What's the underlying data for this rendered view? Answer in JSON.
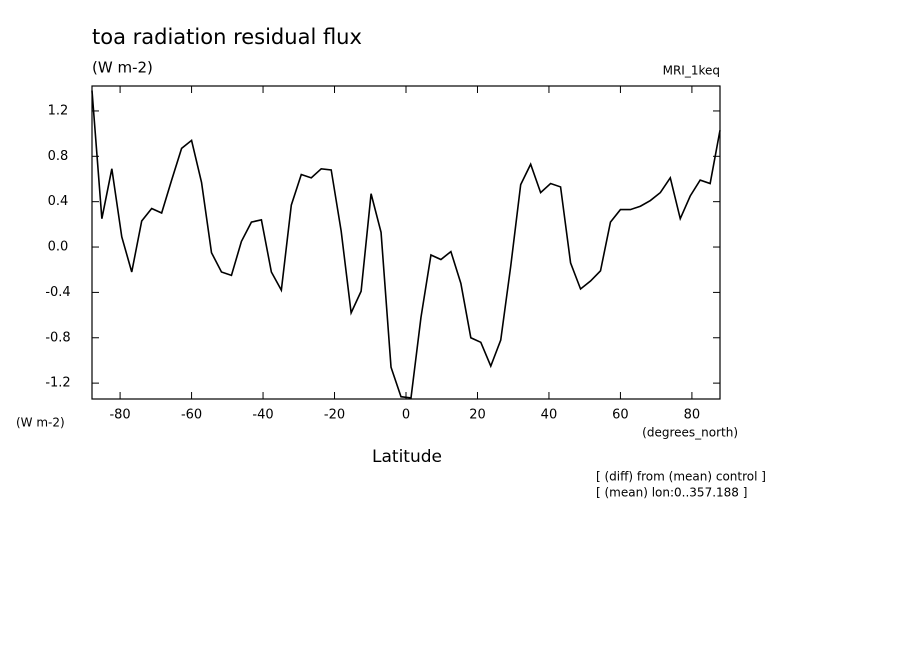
{
  "chart_data": {
    "type": "line",
    "title": "toa radiation residual flux",
    "units": "(W m-2)",
    "model": "MRI_1keq",
    "y_label": "(W m-2)",
    "x_units": "(degrees_north)",
    "x_label": "Latitude",
    "annotations": [
      "[ (diff) from (mean) control ]",
      "[ (mean) lon:0..357.188 ]"
    ],
    "color": "#000000",
    "x": [
      -87.86,
      -85.1,
      -82.31,
      -79.53,
      -76.74,
      -73.95,
      -71.16,
      -68.37,
      -65.58,
      -62.79,
      -60.0,
      -57.21,
      -54.42,
      -51.63,
      -48.84,
      -46.05,
      -43.25,
      -40.46,
      -37.67,
      -34.88,
      -32.09,
      -29.3,
      -26.51,
      -23.72,
      -20.93,
      -18.14,
      -15.35,
      -12.56,
      -9.77,
      -6.98,
      -4.19,
      -1.4,
      1.4,
      4.19,
      6.98,
      9.77,
      12.56,
      15.35,
      18.14,
      20.93,
      23.72,
      26.51,
      29.3,
      32.09,
      34.88,
      37.67,
      40.46,
      43.25,
      46.05,
      48.84,
      51.63,
      54.42,
      57.21,
      60.0,
      62.79,
      65.58,
      68.37,
      71.16,
      73.95,
      76.74,
      79.53,
      82.31,
      85.1,
      87.86
    ],
    "values": [
      1.38,
      0.25,
      0.69,
      0.09,
      -0.22,
      0.23,
      0.34,
      0.3,
      0.59,
      0.87,
      0.94,
      0.57,
      -0.05,
      -0.22,
      -0.25,
      0.05,
      0.22,
      0.24,
      -0.22,
      -0.38,
      0.37,
      0.64,
      0.61,
      0.69,
      0.68,
      0.14,
      -0.58,
      -0.39,
      0.47,
      0.13,
      -1.06,
      -1.32,
      -1.33,
      -0.62,
      -0.07,
      -0.11,
      -0.04,
      -0.32,
      -0.8,
      -0.84,
      -1.05,
      -0.82,
      -0.17,
      0.55,
      0.73,
      0.48,
      0.56,
      0.53,
      -0.14,
      -0.37,
      -0.3,
      -0.21,
      0.22,
      0.33,
      0.33,
      0.36,
      0.41,
      0.48,
      0.61,
      0.25,
      0.45,
      0.59,
      0.56,
      1.03
    ],
    "xlim": [
      -87.86,
      87.86
    ],
    "ylim": [
      -1.34,
      1.42
    ],
    "xticks": [
      -80,
      -60,
      -40,
      -20,
      0,
      20,
      40,
      60,
      80
    ],
    "yticks": [
      -1.2,
      -0.8,
      -0.4,
      {
        "value": 0,
        "label": "0.0"
      },
      0.4,
      0.8,
      1.2
    ]
  }
}
